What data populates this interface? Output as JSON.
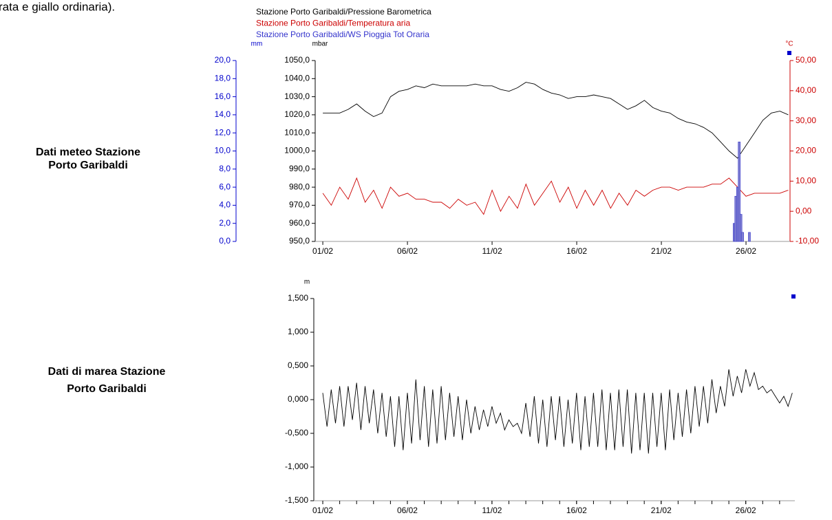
{
  "header_text": "rata e giallo ordinaria).",
  "side_labels": [
    [
      "Dati meteo Stazione",
      "Porto Garibaldi"
    ],
    [
      "Dati di marea Stazione",
      "Porto Garibaldi"
    ]
  ],
  "chart_data": [
    {
      "type": "line",
      "xlim": [
        0.55,
        28.6
      ],
      "xticks": [
        {
          "value": 1,
          "label": "01/02"
        },
        {
          "value": 6,
          "label": "06/02"
        },
        {
          "value": 11,
          "label": "11/02"
        },
        {
          "value": 16,
          "label": "16/02"
        },
        {
          "value": 21,
          "label": "21/02"
        },
        {
          "value": 26,
          "label": "26/02"
        }
      ],
      "ylabel": "mbar",
      "ylim": [
        950,
        1050
      ],
      "yticks": [
        {
          "value": 950,
          "label": "950,0"
        },
        {
          "value": 960,
          "label": "960,0"
        },
        {
          "value": 970,
          "label": "970,0"
        },
        {
          "value": 980,
          "label": "980,0"
        },
        {
          "value": 990,
          "label": "990,0"
        },
        {
          "value": 1000,
          "label": "1000,0"
        },
        {
          "value": 1010,
          "label": "1010,0"
        },
        {
          "value": 1020,
          "label": "1020,0"
        },
        {
          "value": 1030,
          "label": "1030,0"
        },
        {
          "value": 1040,
          "label": "1040,0"
        },
        {
          "value": 1050,
          "label": "1050,0"
        }
      ],
      "y2label": "°C",
      "y2lim": [
        -10,
        50
      ],
      "y2ticks": [
        {
          "value": -10,
          "label": "-10,00"
        },
        {
          "value": 0,
          "label": "0,00"
        },
        {
          "value": 10,
          "label": "10,00"
        },
        {
          "value": 20,
          "label": "20,00"
        },
        {
          "value": 30,
          "label": "30,00"
        },
        {
          "value": 40,
          "label": "40,00"
        },
        {
          "value": 50,
          "label": "50,00"
        }
      ],
      "y3label": "mm",
      "y3lim": [
        0,
        20
      ],
      "y3ticks": [
        {
          "value": 0,
          "label": "0,0"
        },
        {
          "value": 2,
          "label": "2,0"
        },
        {
          "value": 4,
          "label": "4,0"
        },
        {
          "value": 6,
          "label": "6,0"
        },
        {
          "value": 8,
          "label": "8,0"
        },
        {
          "value": 10,
          "label": "10,0"
        },
        {
          "value": 12,
          "label": "12,0"
        },
        {
          "value": 14,
          "label": "14,0"
        },
        {
          "value": 16,
          "label": "16,0"
        },
        {
          "value": 18,
          "label": "18,0"
        },
        {
          "value": 20,
          "label": "20,0"
        }
      ],
      "x": [
        1,
        1.5,
        2,
        2.5,
        3,
        3.5,
        4,
        4.5,
        5,
        5.5,
        6,
        6.5,
        7,
        7.5,
        8,
        8.5,
        9,
        9.5,
        10,
        10.5,
        11,
        11.5,
        12,
        12.5,
        13,
        13.5,
        14,
        14.5,
        15,
        15.5,
        16,
        16.5,
        17,
        17.5,
        18,
        18.5,
        19,
        19.5,
        20,
        20.5,
        21,
        21.5,
        22,
        22.5,
        23,
        23.5,
        24,
        24.5,
        25,
        25.5,
        26,
        26.5,
        27,
        27.5,
        28,
        28.5
      ],
      "series": [
        {
          "name": "Stazione Porto Garibaldi/Pressione Barometrica",
          "color": "#000000",
          "axis": "y",
          "values": [
            1021,
            1021,
            1021,
            1023,
            1026,
            1022,
            1019,
            1021,
            1030,
            1033,
            1034,
            1036,
            1035,
            1037,
            1036,
            1036,
            1036,
            1036,
            1037,
            1036,
            1036,
            1034,
            1033,
            1035,
            1038,
            1037,
            1034,
            1032,
            1031,
            1029,
            1030,
            1030,
            1031,
            1030,
            1029,
            1026,
            1023,
            1025,
            1028,
            1024,
            1022,
            1021,
            1018,
            1016,
            1015,
            1013,
            1010,
            1005,
            1000,
            996,
            1003,
            1010,
            1017,
            1021,
            1022,
            1020
          ]
        },
        {
          "name": "Stazione Porto Garibaldi/Temperatura aria",
          "color": "#cc0000",
          "axis": "y2",
          "values": [
            6,
            2,
            8,
            4,
            11,
            3,
            7,
            1,
            8,
            5,
            6,
            4,
            4,
            3,
            3,
            1,
            4,
            2,
            3,
            -1,
            7,
            0,
            5,
            1,
            9,
            2,
            6,
            10,
            3,
            8,
            1,
            7,
            2,
            7,
            1,
            6,
            2,
            7,
            5,
            7,
            8,
            8,
            7,
            8,
            8,
            8,
            9,
            9,
            11,
            8,
            5,
            6,
            6,
            6,
            6,
            7
          ]
        },
        {
          "name": "Stazione Porto Garibaldi/WS Pioggia Tot Oraria",
          "color": "#3333cc",
          "axis": "y3",
          "type": "bar",
          "x": [
            25.3,
            25.4,
            25.5,
            25.6,
            25.7,
            25.8,
            26.2
          ],
          "values": [
            2,
            5,
            6,
            11,
            3,
            1,
            1
          ]
        }
      ]
    },
    {
      "type": "line",
      "xlim": [
        0.47,
        28.9
      ],
      "xticks": [
        {
          "value": 1,
          "label": "01/02"
        },
        {
          "value": 6,
          "label": "06/02"
        },
        {
          "value": 11,
          "label": "11/02"
        },
        {
          "value": 16,
          "label": "16/02"
        },
        {
          "value": 21,
          "label": "21/02"
        },
        {
          "value": 26,
          "label": "26/02"
        }
      ],
      "xminorticks": [
        1,
        2,
        3,
        4,
        5,
        6,
        7,
        8,
        9,
        10,
        11,
        12,
        13,
        14,
        15,
        16,
        17,
        18,
        19,
        20,
        21,
        22,
        23,
        24,
        25,
        26,
        27,
        28
      ],
      "ylabel": "m",
      "ylim": [
        -1.5,
        1.5
      ],
      "yticks": [
        {
          "value": -1.5,
          "label": "-1,500"
        },
        {
          "value": -1,
          "label": "-1,000"
        },
        {
          "value": -0.5,
          "label": "-0,500"
        },
        {
          "value": 0,
          "label": "0,000"
        },
        {
          "value": 0.5,
          "label": "0,500"
        },
        {
          "value": 1,
          "label": "1,000"
        },
        {
          "value": 1.5,
          "label": "1,500"
        }
      ],
      "x": [
        1,
        1.25,
        1.5,
        1.75,
        2,
        2.25,
        2.5,
        2.75,
        3,
        3.25,
        3.5,
        3.75,
        4,
        4.25,
        4.5,
        4.75,
        5,
        5.25,
        5.5,
        5.75,
        6,
        6.25,
        6.5,
        6.75,
        7,
        7.25,
        7.5,
        7.75,
        8,
        8.25,
        8.5,
        8.75,
        9,
        9.25,
        9.5,
        9.75,
        10,
        10.25,
        10.5,
        10.75,
        11,
        11.25,
        11.5,
        11.75,
        12,
        12.25,
        12.5,
        12.75,
        13,
        13.25,
        13.5,
        13.75,
        14,
        14.25,
        14.5,
        14.75,
        15,
        15.25,
        15.5,
        15.75,
        16,
        16.25,
        16.5,
        16.75,
        17,
        17.25,
        17.5,
        17.75,
        18,
        18.25,
        18.5,
        18.75,
        19,
        19.25,
        19.5,
        19.75,
        20,
        20.25,
        20.5,
        20.75,
        21,
        21.25,
        21.5,
        21.75,
        22,
        22.25,
        22.5,
        22.75,
        23,
        23.25,
        23.5,
        23.75,
        24,
        24.25,
        24.5,
        24.75,
        25,
        25.25,
        25.5,
        25.75,
        26,
        26.25,
        26.5,
        26.75,
        27,
        27.25,
        27.5,
        27.75,
        28,
        28.25,
        28.5,
        28.75
      ],
      "series": [
        {
          "color": "#000000",
          "axis": "y",
          "values": [
            0.1,
            -0.4,
            0.15,
            -0.35,
            0.2,
            -0.4,
            0.2,
            -0.3,
            0.25,
            -0.45,
            0.2,
            -0.35,
            0.15,
            -0.5,
            0.1,
            -0.55,
            0.05,
            -0.7,
            0.05,
            -0.75,
            0.1,
            -0.65,
            0.3,
            -0.6,
            0.2,
            -0.7,
            0.15,
            -0.65,
            0.2,
            -0.6,
            0.1,
            -0.55,
            0.05,
            -0.6,
            0,
            -0.5,
            -0.1,
            -0.45,
            -0.15,
            -0.4,
            -0.1,
            -0.35,
            -0.2,
            -0.45,
            -0.3,
            -0.4,
            -0.35,
            -0.5,
            -0.05,
            -0.55,
            0.05,
            -0.65,
            0,
            -0.7,
            0.05,
            -0.6,
            0.05,
            -0.7,
            0,
            -0.65,
            0.1,
            -0.75,
            0.05,
            -0.7,
            0.1,
            -0.7,
            0.15,
            -0.75,
            0.1,
            -0.75,
            0.15,
            -0.7,
            0.15,
            -0.8,
            0.1,
            -0.75,
            0.1,
            -0.8,
            0.1,
            -0.7,
            0.1,
            -0.75,
            0.15,
            -0.6,
            0.1,
            -0.55,
            0.15,
            -0.5,
            0.2,
            -0.4,
            0.2,
            -0.35,
            0.3,
            -0.2,
            0.2,
            -0.1,
            0.45,
            0.05,
            0.35,
            0.1,
            0.45,
            0.2,
            0.4,
            0.15,
            0.2,
            0.1,
            0.15,
            0.05,
            -0.05,
            0.05,
            -0.1,
            0.1
          ]
        }
      ]
    }
  ]
}
